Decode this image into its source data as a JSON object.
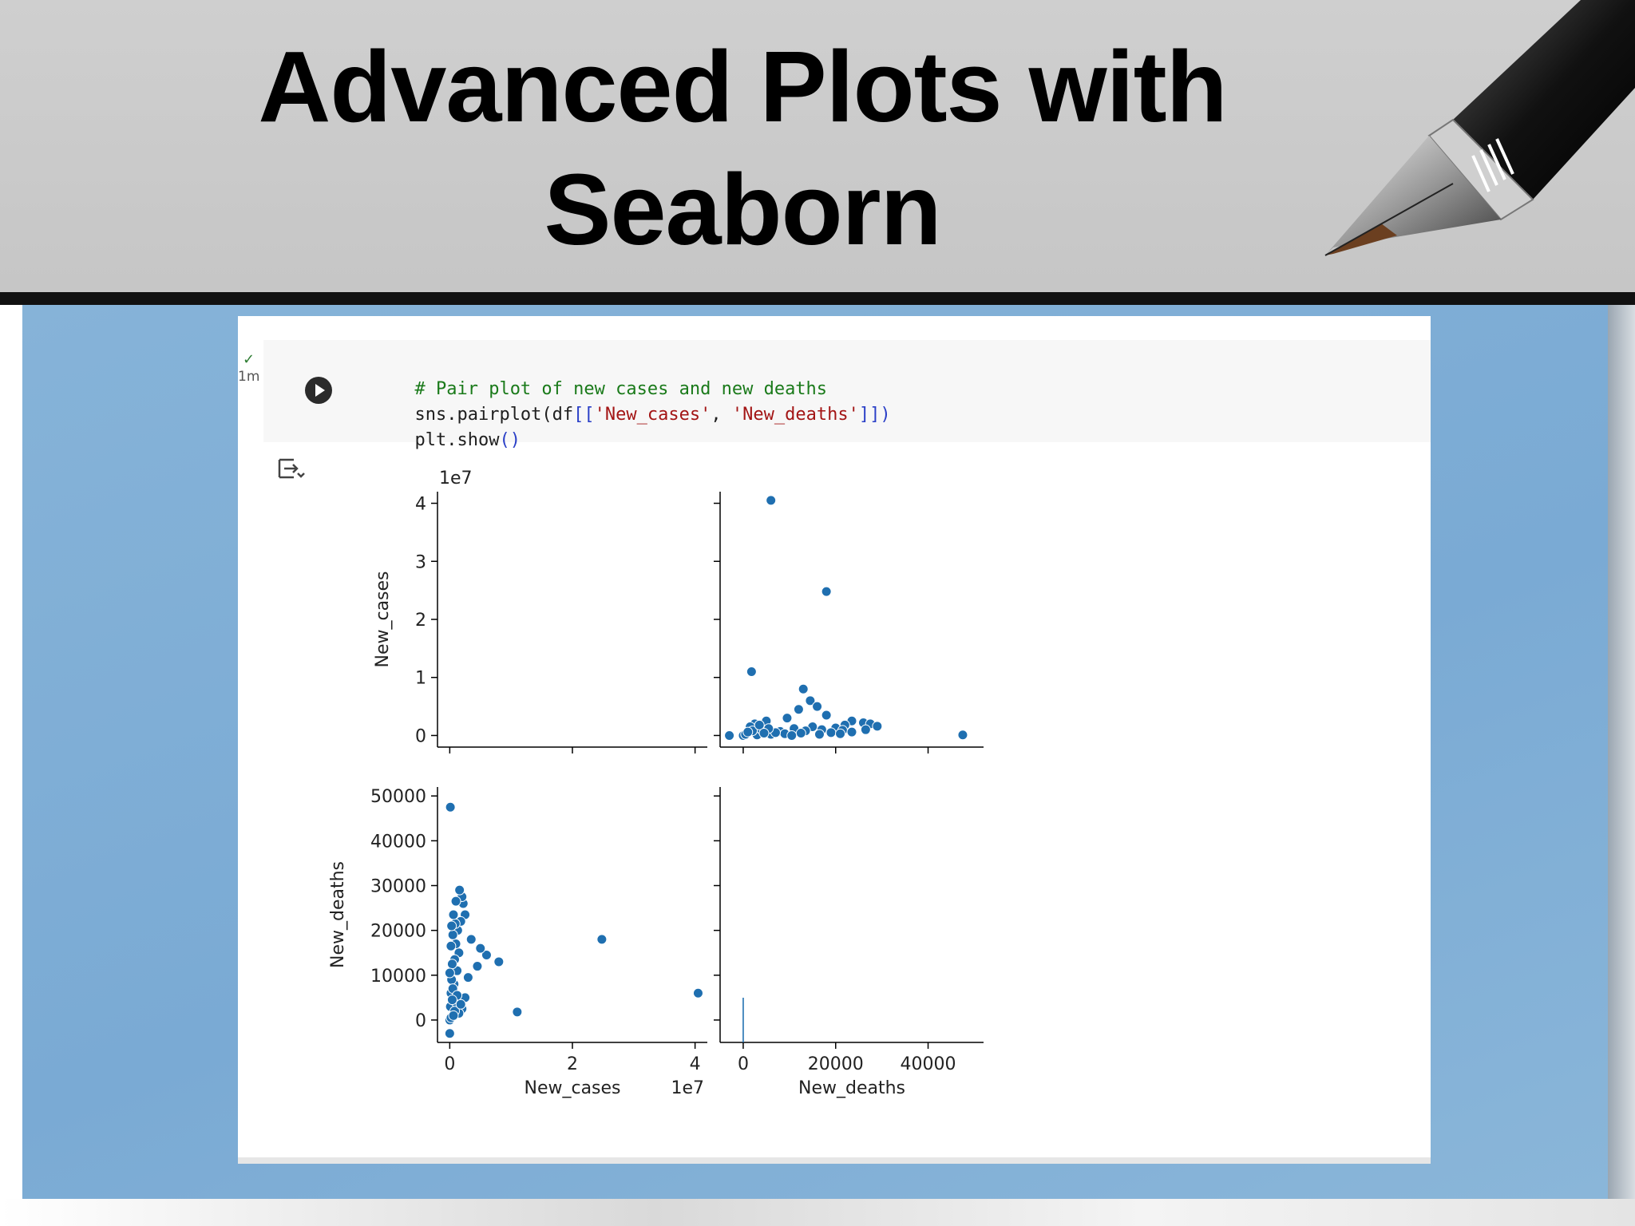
{
  "slide": {
    "title_line1": "Advanced Plots with",
    "title_line2": "Seaborn"
  },
  "cell": {
    "status_check": "✓",
    "exec_time": "1m",
    "code_comment": "# Pair plot of new cases and new deaths",
    "code_line2_prefix": "sns.pairplot(df",
    "code_line2_open": "[[",
    "code_line2_str1": "'New_cases'",
    "code_line2_sep": ", ",
    "code_line2_str2": "'New_deaths'",
    "code_line2_close": "]])",
    "code_line3_prefix": "plt.show",
    "code_line3_parens": "()"
  },
  "colors": {
    "marker": "#1f6fb0",
    "axis": "#000000",
    "panel_blue": "#7eaed6"
  },
  "icons": {
    "run": "play-circle-icon",
    "output_toggle": "output-collapse-icon",
    "status": "checkmark-icon"
  },
  "chart_data": {
    "type": "scatter",
    "title": "",
    "variables": [
      "New_cases",
      "New_deaths"
    ],
    "diag_kind": "hist",
    "grid": false,
    "axes": {
      "New_cases": {
        "range": [
          -2000000,
          42000000
        ],
        "ticks": [
          0,
          10000000,
          20000000,
          30000000,
          40000000
        ],
        "tick_labels_y": [
          "0",
          "1",
          "2",
          "3",
          "4"
        ],
        "tick_labels_x": [
          "0",
          "2",
          "4"
        ],
        "offset_label": "1e7",
        "label": "New_cases"
      },
      "New_deaths": {
        "range": [
          -5000,
          52000
        ],
        "ticks_y": [
          0,
          10000,
          20000,
          30000,
          40000,
          50000
        ],
        "tick_labels_y": [
          "0",
          "10000",
          "20000",
          "30000",
          "40000",
          "50000"
        ],
        "ticks_x": [
          0,
          20000,
          40000
        ],
        "tick_labels_x": [
          "0",
          "20000",
          "40000"
        ],
        "label": "New_deaths"
      }
    },
    "points": [
      {
        "cases": 40500000,
        "deaths": 6000
      },
      {
        "cases": 24800000,
        "deaths": 18000
      },
      {
        "cases": 11000000,
        "deaths": 1800
      },
      {
        "cases": 8000000,
        "deaths": 13000
      },
      {
        "cases": 6000000,
        "deaths": 14500
      },
      {
        "cases": 5000000,
        "deaths": 16000
      },
      {
        "cases": 4500000,
        "deaths": 12000
      },
      {
        "cases": 3500000,
        "deaths": 18000
      },
      {
        "cases": 3000000,
        "deaths": 9500
      },
      {
        "cases": 2500000,
        "deaths": 23500
      },
      {
        "cases": 2200000,
        "deaths": 26000
      },
      {
        "cases": 2000000,
        "deaths": 27500
      },
      {
        "cases": 1800000,
        "deaths": 22000
      },
      {
        "cases": 1600000,
        "deaths": 29000
      },
      {
        "cases": 1500000,
        "deaths": 15000
      },
      {
        "cases": 1300000,
        "deaths": 20000
      },
      {
        "cases": 1200000,
        "deaths": 11000
      },
      {
        "cases": 1000000,
        "deaths": 26500
      },
      {
        "cases": 1000000,
        "deaths": 17000
      },
      {
        "cases": 900000,
        "deaths": 21500
      },
      {
        "cases": 800000,
        "deaths": 13500
      },
      {
        "cases": 700000,
        "deaths": 8000
      },
      {
        "cases": 600000,
        "deaths": 23500
      },
      {
        "cases": 500000,
        "deaths": 19000
      },
      {
        "cases": 400000,
        "deaths": 12500
      },
      {
        "cases": 300000,
        "deaths": 21000
      },
      {
        "cases": 300000,
        "deaths": 9000
      },
      {
        "cases": 200000,
        "deaths": 16500
      },
      {
        "cases": 200000,
        "deaths": 6000
      },
      {
        "cases": 100000,
        "deaths": 47500
      },
      {
        "cases": 100000,
        "deaths": 3000
      },
      {
        "cases": 0,
        "deaths": 0
      },
      {
        "cases": 0,
        "deaths": -3000
      },
      {
        "cases": 0,
        "deaths": 10500
      },
      {
        "cases": 2500000,
        "deaths": 5000
      },
      {
        "cases": 2000000,
        "deaths": 2500
      },
      {
        "cases": 1500000,
        "deaths": 1500
      },
      {
        "cases": 1000000,
        "deaths": 4000
      },
      {
        "cases": 500000,
        "deaths": 7000
      },
      {
        "cases": 800000,
        "deaths": 2000
      },
      {
        "cases": 200000,
        "deaths": 500
      },
      {
        "cases": 1800000,
        "deaths": 3500
      },
      {
        "cases": 1200000,
        "deaths": 5500
      },
      {
        "cases": 600000,
        "deaths": 1000
      },
      {
        "cases": 400000,
        "deaths": 4500
      }
    ]
  }
}
